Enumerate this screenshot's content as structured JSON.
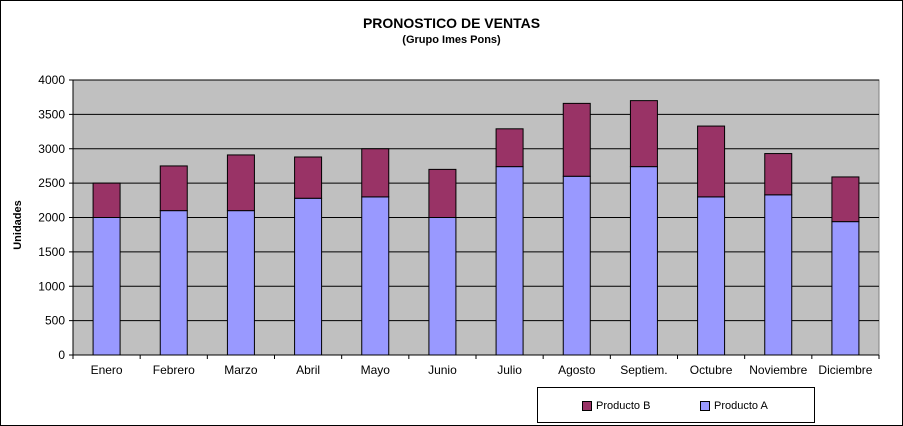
{
  "chart_data": {
    "type": "bar",
    "stacked": true,
    "title": "PRONOSTICO DE VENTAS",
    "subtitle": "(Grupo  Imes Pons)",
    "xlabel": "",
    "ylabel": "Unidades",
    "ylim": [
      0,
      4000
    ],
    "yticks": [
      0,
      500,
      1000,
      1500,
      2000,
      2500,
      3000,
      3500,
      4000
    ],
    "grid": true,
    "legend_position": "bottom",
    "categories": [
      "Enero",
      "Febrero",
      "Marzo",
      "Abril",
      "Mayo",
      "Junio",
      "Julio",
      "Agosto",
      "Septiem.",
      "Octubre",
      "Noviembre",
      "Diciembre"
    ],
    "series": [
      {
        "name": "Producto A",
        "color": "#9999ff",
        "values": [
          2000,
          2100,
          2100,
          2280,
          2300,
          2000,
          2740,
          2600,
          2740,
          2300,
          2330,
          1940
        ]
      },
      {
        "name": "Producto B",
        "color": "#993366",
        "values": [
          500,
          650,
          810,
          600,
          700,
          700,
          550,
          1060,
          960,
          1030,
          600,
          650
        ]
      }
    ],
    "colors": {
      "plot_background": "#c0c0c0",
      "gridline": "#000000"
    }
  }
}
